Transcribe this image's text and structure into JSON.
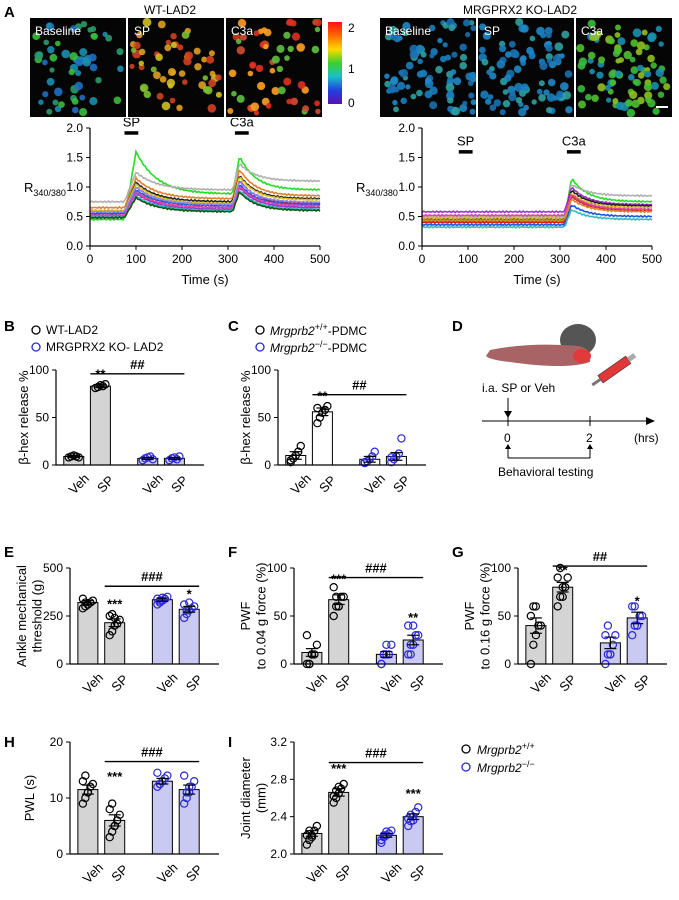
{
  "panels": {
    "A": "A",
    "B": "B",
    "C": "C",
    "D": "D",
    "E": "E",
    "F": "F",
    "G": "G",
    "H": "H",
    "I": "I"
  },
  "imaging": {
    "left_title": "WT-LAD2",
    "right_title": "MRGPRX2 KO-LAD2",
    "frame_labels": [
      "Baseline",
      "SP",
      "C3a"
    ],
    "colorbar_ticks": [
      "2",
      "1",
      "0"
    ]
  },
  "chart_data": [
    {
      "id": "A-left",
      "type": "line",
      "title": "",
      "xlabel": "Time (s)",
      "ylabel": "R340/380",
      "xlim": [
        0,
        500
      ],
      "ylim": [
        0,
        2.0
      ],
      "xticks": [
        "0",
        "100",
        "200",
        "300",
        "400",
        "500"
      ],
      "yticks": [
        "0.0",
        "0.5",
        "1.0",
        "1.5",
        "2.0"
      ],
      "yticks_vals": [
        0,
        0.5,
        1.0,
        1.5,
        2.0
      ],
      "xticks_vals": [
        0,
        100,
        200,
        300,
        400,
        500
      ],
      "annotations": [
        {
          "text": "SP",
          "x0": 75,
          "x1": 105,
          "y": 1.92
        },
        {
          "text": "C3a",
          "x0": 315,
          "x1": 345,
          "y": 1.92
        }
      ],
      "traces": [
        {
          "color": "#22dd22",
          "base": 0.45,
          "sp_peak": 1.6,
          "sp_end": 0.88,
          "c3_peak": 1.52,
          "c3_end": 0.95
        },
        {
          "color": "#b0b0b0",
          "base": 0.75,
          "sp_peak": 1.25,
          "sp_end": 0.95,
          "c3_peak": 1.4,
          "c3_end": 1.1
        },
        {
          "color": "#e08030",
          "base": 0.65,
          "sp_peak": 1.15,
          "sp_end": 0.8,
          "c3_peak": 1.3,
          "c3_end": 0.85
        },
        {
          "color": "#222222",
          "base": 0.6,
          "sp_peak": 1.08,
          "sp_end": 0.75,
          "c3_peak": 1.2,
          "c3_end": 0.8
        },
        {
          "color": "#cc2222",
          "base": 0.55,
          "sp_peak": 1.0,
          "sp_end": 0.7,
          "c3_peak": 1.12,
          "c3_end": 0.72
        },
        {
          "color": "#2255dd",
          "base": 0.55,
          "sp_peak": 0.95,
          "sp_end": 0.68,
          "c3_peak": 1.05,
          "c3_end": 0.7
        },
        {
          "color": "#9933cc",
          "base": 0.5,
          "sp_peak": 0.9,
          "sp_end": 0.62,
          "c3_peak": 1.0,
          "c3_end": 0.65
        },
        {
          "color": "#e0c020",
          "base": 0.6,
          "sp_peak": 1.05,
          "sp_end": 0.72,
          "c3_peak": 1.18,
          "c3_end": 0.78
        },
        {
          "color": "#33bbbb",
          "base": 0.5,
          "sp_peak": 0.85,
          "sp_end": 0.6,
          "c3_peak": 0.95,
          "c3_end": 0.62
        },
        {
          "color": "#dd44aa",
          "base": 0.52,
          "sp_peak": 0.92,
          "sp_end": 0.65,
          "c3_peak": 1.02,
          "c3_end": 0.68
        },
        {
          "color": "#115511",
          "base": 0.48,
          "sp_peak": 0.82,
          "sp_end": 0.58,
          "c3_peak": 0.92,
          "c3_end": 0.6
        },
        {
          "color": "#8888ff",
          "base": 0.58,
          "sp_peak": 1.0,
          "sp_end": 0.7,
          "c3_peak": 1.1,
          "c3_end": 0.74
        }
      ]
    },
    {
      "id": "A-right",
      "type": "line",
      "title": "",
      "xlabel": "Time (s)",
      "ylabel": "R340/380",
      "xlim": [
        0,
        500
      ],
      "ylim": [
        0,
        2.0
      ],
      "xticks": [
        "0",
        "100",
        "200",
        "300",
        "400",
        "500"
      ],
      "yticks": [
        "0.0",
        "0.5",
        "1.0",
        "1.5",
        "2.0"
      ],
      "yticks_vals": [
        0,
        0.5,
        1.0,
        1.5,
        2.0
      ],
      "xticks_vals": [
        0,
        100,
        200,
        300,
        400,
        500
      ],
      "annotations": [
        {
          "text": "SP",
          "x0": 80,
          "x1": 110,
          "y": 1.6
        },
        {
          "text": "C3a",
          "x0": 315,
          "x1": 345,
          "y": 1.6
        }
      ],
      "traces": [
        {
          "color": "#22dd22",
          "base": 0.42,
          "sp_peak": 0.42,
          "sp_end": 0.42,
          "c3_peak": 1.15,
          "c3_end": 0.75
        },
        {
          "color": "#b0b0b0",
          "base": 0.5,
          "sp_peak": 0.5,
          "sp_end": 0.5,
          "c3_peak": 1.05,
          "c3_end": 0.85
        },
        {
          "color": "#9933cc",
          "base": 0.58,
          "sp_peak": 0.58,
          "sp_end": 0.58,
          "c3_peak": 1.0,
          "c3_end": 0.7
        },
        {
          "color": "#222222",
          "base": 0.45,
          "sp_peak": 0.45,
          "sp_end": 0.45,
          "c3_peak": 0.95,
          "c3_end": 0.68
        },
        {
          "color": "#e0c020",
          "base": 0.48,
          "sp_peak": 0.48,
          "sp_end": 0.48,
          "c3_peak": 0.9,
          "c3_end": 0.65
        },
        {
          "color": "#cc2222",
          "base": 0.4,
          "sp_peak": 0.4,
          "sp_end": 0.4,
          "c3_peak": 0.85,
          "c3_end": 0.6
        },
        {
          "color": "#2255dd",
          "base": 0.36,
          "sp_peak": 0.36,
          "sp_end": 0.36,
          "c3_peak": 0.7,
          "c3_end": 0.5
        },
        {
          "color": "#33bbbb",
          "base": 0.32,
          "sp_peak": 0.32,
          "sp_end": 0.32,
          "c3_peak": 0.62,
          "c3_end": 0.45
        },
        {
          "color": "#dd44aa",
          "base": 0.52,
          "sp_peak": 0.52,
          "sp_end": 0.52,
          "c3_peak": 0.88,
          "c3_end": 0.62
        },
        {
          "color": "#e08030",
          "base": 0.44,
          "sp_peak": 0.44,
          "sp_end": 0.44,
          "c3_peak": 0.8,
          "c3_end": 0.58
        }
      ]
    },
    {
      "id": "B",
      "type": "bar",
      "ylabel": "β-hex release %",
      "ylim": [
        0,
        100
      ],
      "yticks": [
        "0",
        "50",
        "100"
      ],
      "yticks_vals": [
        0,
        50,
        100
      ],
      "categories": [
        "Veh",
        "SP",
        "Veh",
        "SP"
      ],
      "groups": [
        "wt",
        "wt",
        "ko",
        "ko"
      ],
      "values": [
        9,
        83,
        7,
        7
      ],
      "errors": [
        1,
        1.5,
        1,
        1
      ],
      "points": [
        [
          8,
          9,
          10,
          9,
          8
        ],
        [
          81,
          82,
          84,
          83,
          85
        ],
        [
          5,
          7,
          8,
          9,
          6
        ],
        [
          5,
          7,
          8,
          6,
          9
        ]
      ],
      "stats": [
        {
          "text": "**",
          "bar": 1,
          "y": 91
        }
      ],
      "bracket": {
        "text": "##",
        "from": 1,
        "to": 3,
        "y": 96
      }
    },
    {
      "id": "C",
      "type": "bar",
      "ylabel": "β-hex release %",
      "ylim": [
        0,
        100
      ],
      "yticks": [
        "0",
        "50",
        "100"
      ],
      "yticks_vals": [
        0,
        50,
        100
      ],
      "categories": [
        "Veh",
        "SP",
        "Veh",
        "SP"
      ],
      "groups": [
        "wt",
        "wt",
        "ko",
        "ko"
      ],
      "values": [
        10,
        56,
        6,
        9
      ],
      "errors": [
        4,
        4,
        3,
        4
      ],
      "points": [
        [
          3,
          7,
          10,
          14,
          20,
          5
        ],
        [
          44,
          50,
          55,
          58,
          62,
          60
        ],
        [
          2,
          4,
          6,
          9,
          14,
          3
        ],
        [
          3,
          6,
          9,
          12,
          28,
          8
        ]
      ],
      "stats": [
        {
          "text": "**",
          "bar": 1,
          "y": 68
        }
      ],
      "bracket": {
        "text": "##",
        "from": 1,
        "to": 3,
        "y": 74
      }
    },
    {
      "id": "E",
      "type": "bar",
      "ylabel": "Ankle mechanical\nthreshold (g)",
      "ylim": [
        0,
        500
      ],
      "yticks": [
        "0",
        "250",
        "500"
      ],
      "yticks_vals": [
        0,
        250,
        500
      ],
      "categories": [
        "Veh",
        "SP",
        "Veh",
        "SP"
      ],
      "groups": [
        "wt",
        "wt",
        "mrg",
        "mrg"
      ],
      "values": [
        320,
        215,
        335,
        285
      ],
      "errors": [
        10,
        20,
        8,
        15
      ],
      "points": [
        [
          290,
          300,
          310,
          320,
          330,
          340,
          320,
          310
        ],
        [
          150,
          170,
          200,
          210,
          230,
          250,
          260,
          240
        ],
        [
          310,
          320,
          330,
          340,
          350,
          340,
          330,
          345
        ],
        [
          240,
          260,
          280,
          290,
          300,
          310,
          280,
          320
        ]
      ],
      "stats": [
        {
          "text": "***",
          "bar": 1,
          "y": 290
        },
        {
          "text": "*",
          "bar": 3,
          "y": 340
        }
      ],
      "bracket": {
        "text": "###",
        "from": 1,
        "to": 3,
        "y": 405
      }
    },
    {
      "id": "F",
      "type": "bar",
      "ylabel": "PWF\nto 0.04 g force (%)",
      "ylim": [
        0,
        100
      ],
      "yticks": [
        "0",
        "50",
        "100"
      ],
      "yticks_vals": [
        0,
        50,
        100
      ],
      "categories": [
        "Veh",
        "SP",
        "Veh",
        "SP"
      ],
      "groups": [
        "wt",
        "wt",
        "mrg",
        "mrg"
      ],
      "values": [
        12,
        67,
        10,
        25
      ],
      "errors": [
        4,
        5,
        3,
        5
      ],
      "points": [
        [
          0,
          0,
          10,
          10,
          20,
          30,
          0,
          10
        ],
        [
          50,
          60,
          60,
          70,
          70,
          80,
          70,
          60
        ],
        [
          0,
          10,
          10,
          10,
          20,
          0,
          10,
          20
        ],
        [
          10,
          20,
          20,
          30,
          30,
          40,
          10,
          40
        ]
      ],
      "stats": [
        {
          "text": "***",
          "bar": 1,
          "y": 84
        },
        {
          "text": "**",
          "bar": 3,
          "y": 44
        }
      ],
      "bracket": {
        "text": "###",
        "from": 1,
        "to": 3,
        "y": 90
      }
    },
    {
      "id": "G",
      "type": "bar",
      "ylabel": "PWF\nto 0.16 g force (%)",
      "ylim": [
        0,
        100
      ],
      "yticks": [
        "0",
        "50",
        "100"
      ],
      "yticks_vals": [
        0,
        50,
        100
      ],
      "categories": [
        "Veh",
        "SP",
        "Veh",
        "SP"
      ],
      "groups": [
        "wt",
        "wt",
        "mrg",
        "mrg"
      ],
      "values": [
        40,
        80,
        22,
        48
      ],
      "errors": [
        8,
        5,
        6,
        6
      ],
      "points": [
        [
          0,
          20,
          30,
          40,
          40,
          50,
          60,
          60
        ],
        [
          60,
          70,
          80,
          80,
          90,
          90,
          100,
          70
        ],
        [
          0,
          10,
          10,
          20,
          30,
          30,
          40,
          10
        ],
        [
          30,
          40,
          40,
          50,
          50,
          60,
          60,
          40
        ]
      ],
      "stats": [
        {
          "text": "**",
          "bar": 1,
          "y": 93
        },
        {
          "text": "*",
          "bar": 3,
          "y": 61
        }
      ],
      "bracket": {
        "text": "##",
        "from": 1,
        "to": 3,
        "y": 102
      }
    },
    {
      "id": "H",
      "type": "bar",
      "ylabel": "PWL (s)",
      "ylim": [
        0,
        20
      ],
      "yticks": [
        "0",
        "10",
        "20"
      ],
      "yticks_vals": [
        0,
        10,
        20
      ],
      "categories": [
        "Veh",
        "SP",
        "Veh",
        "SP"
      ],
      "groups": [
        "wt",
        "wt",
        "mrg",
        "mrg"
      ],
      "values": [
        11.5,
        6,
        13,
        11.5
      ],
      "errors": [
        0.8,
        1,
        0.5,
        0.8
      ],
      "points": [
        [
          9,
          10,
          11,
          12,
          12.5,
          13,
          14,
          11
        ],
        [
          3,
          4,
          5,
          6,
          7,
          8,
          9,
          5
        ],
        [
          12,
          12.5,
          13,
          13.5,
          14,
          14.5,
          12.5,
          13
        ],
        [
          9,
          10,
          11,
          12,
          13,
          14,
          11,
          12
        ]
      ],
      "stats": [
        {
          "text": "***",
          "bar": 1,
          "y": 13
        }
      ],
      "bracket": {
        "text": "###",
        "from": 1,
        "to": 3,
        "y": 16.5
      }
    },
    {
      "id": "I",
      "type": "bar",
      "ylabel": "Joint diameter\n(mm)",
      "ylim": [
        2.0,
        3.2
      ],
      "yticks": [
        "2.0",
        "2.4",
        "2.8",
        "3.2"
      ],
      "yticks_vals": [
        2.0,
        2.4,
        2.8,
        3.2
      ],
      "categories": [
        "Veh",
        "SP",
        "Veh",
        "SP"
      ],
      "groups": [
        "wt",
        "wt",
        "mrg",
        "mrg"
      ],
      "values": [
        2.22,
        2.66,
        2.2,
        2.4
      ],
      "errors": [
        0.03,
        0.04,
        0.02,
        0.03
      ],
      "points": [
        [
          2.1,
          2.15,
          2.2,
          2.25,
          2.3,
          2.2,
          2.25,
          2.18
        ],
        [
          2.55,
          2.6,
          2.65,
          2.7,
          2.75,
          2.62,
          2.68,
          2.72
        ],
        [
          2.12,
          2.18,
          2.2,
          2.22,
          2.25,
          2.15,
          2.2,
          2.24
        ],
        [
          2.3,
          2.35,
          2.4,
          2.45,
          2.5,
          2.38,
          2.42,
          2.36
        ]
      ],
      "stats": [
        {
          "text": "***",
          "bar": 1,
          "y": 2.87
        },
        {
          "text": "***",
          "bar": 3,
          "y": 2.6
        }
      ],
      "bracket": {
        "text": "###",
        "from": 1,
        "to": 3,
        "y": 2.98
      }
    }
  ],
  "legends": {
    "B": [
      "WT-LAD2",
      "MRGPRX2 KO- LAD2"
    ],
    "C": [
      {
        "main": "Mrgprb2",
        "sup": "+/+",
        "rest": "-PDMC"
      },
      {
        "main": "Mrgprb2",
        "sup": "−/−",
        "rest": "-PDMC"
      }
    ],
    "I": [
      {
        "main": "Mrgprb2",
        "sup": "+/+"
      },
      {
        "main": "Mrgprb2",
        "sup": "−/−"
      }
    ]
  },
  "schematic": {
    "injection": "i.a. SP or Veh",
    "t0": "0",
    "t2": "2",
    "unit": "(hrs)",
    "testing": "Behavioral testing"
  },
  "colors": {
    "wt_fill": "#d4d4d4",
    "ko_fill": "#c9c9f2",
    "ko_point": "#2a2ad6",
    "wt_point": "#000000",
    "white_fill": "#ffffff"
  }
}
